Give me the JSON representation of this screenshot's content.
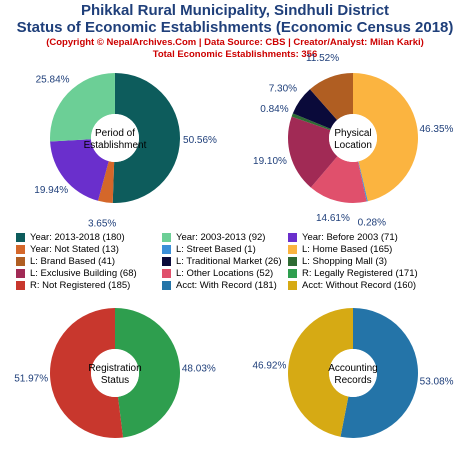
{
  "header": {
    "title_line1": "Phikkal Rural Municipality, Sindhuli District",
    "title_line2": "Status of Economic Establishments (Economic Census 2018)",
    "copyright": "(Copyright © NepalArchives.Com | Data Source: CBS | Creator/Analyst: Milan Karki)",
    "total": "Total Economic Establishments: 356"
  },
  "chart_data": [
    {
      "type": "pie",
      "center_label": [
        "Period of",
        "Establishment"
      ],
      "slices": [
        {
          "name": "Year: 2013-2018",
          "count": 180,
          "percent": 50.56,
          "color": "#0d5c5c",
          "label": "50.56%"
        },
        {
          "name": "Year: Not Stated",
          "count": 13,
          "percent": 3.65,
          "color": "#d4672a",
          "label": "3.65%"
        },
        {
          "name": "Year: Before 2003",
          "count": 71,
          "percent": 19.94,
          "color": "#6a2fcc",
          "label": "19.94%"
        },
        {
          "name": "Year: 2003-2013",
          "count": 92,
          "percent": 25.84,
          "color": "#6ccf96",
          "label": "25.84%"
        }
      ]
    },
    {
      "type": "pie",
      "center_label": [
        "Physical",
        "Location"
      ],
      "slices": [
        {
          "name": "L: Home Based",
          "count": 165,
          "percent": 46.35,
          "color": "#fbb440",
          "label": "46.35%"
        },
        {
          "name": "L: Street Based",
          "count": 1,
          "percent": 0.28,
          "color": "#3a8fd8",
          "label": "0.28%"
        },
        {
          "name": "L: Other Locations",
          "count": 52,
          "percent": 14.61,
          "color": "#e0506c",
          "label": "14.61%"
        },
        {
          "name": "L: Exclusive Building",
          "count": 68,
          "percent": 19.1,
          "color": "#a12a55",
          "label": "19.10%"
        },
        {
          "name": "L: Shopping Mall",
          "count": 3,
          "percent": 0.84,
          "color": "#2e6b33",
          "label": "0.84%"
        },
        {
          "name": "L: Traditional Market",
          "count": 26,
          "percent": 7.3,
          "color": "#0a0a3a",
          "label": "7.30%"
        },
        {
          "name": "L: Brand Based",
          "count": 41,
          "percent": 11.52,
          "color": "#b05e22",
          "label": "11.52%"
        }
      ]
    },
    {
      "type": "pie",
      "center_label": [
        "Registration",
        "Status"
      ],
      "slices": [
        {
          "name": "R: Legally Registered",
          "count": 171,
          "percent": 48.03,
          "color": "#2e9e4e",
          "label": "48.03%"
        },
        {
          "name": "R: Not Registered",
          "count": 185,
          "percent": 51.97,
          "color": "#c8372d",
          "label": "51.97%"
        }
      ]
    },
    {
      "type": "pie",
      "center_label": [
        "Accounting",
        "Records"
      ],
      "slices": [
        {
          "name": "Acct: With Record",
          "count": 181,
          "percent": 53.08,
          "color": "#2474a8",
          "label": "53.08%"
        },
        {
          "name": "Acct: Without Record",
          "count": 160,
          "percent": 46.92,
          "color": "#d6aa14",
          "label": "46.92%"
        }
      ]
    }
  ],
  "legend": [
    {
      "text": "Year: 2013-2018 (180)",
      "color": "#0d5c5c"
    },
    {
      "text": "Year: 2003-2013 (92)",
      "color": "#6ccf96"
    },
    {
      "text": "Year: Before 2003 (71)",
      "color": "#6a2fcc"
    },
    {
      "text": "Year: Not Stated (13)",
      "color": "#d4672a"
    },
    {
      "text": "L: Street Based (1)",
      "color": "#3a8fd8"
    },
    {
      "text": "L: Home Based (165)",
      "color": "#fbb440"
    },
    {
      "text": "L: Brand Based (41)",
      "color": "#b05e22"
    },
    {
      "text": "L: Traditional Market (26)",
      "color": "#0a0a3a"
    },
    {
      "text": "L: Shopping Mall (3)",
      "color": "#2e6b33"
    },
    {
      "text": "L: Exclusive Building (68)",
      "color": "#a12a55"
    },
    {
      "text": "L: Other Locations (52)",
      "color": "#e0506c"
    },
    {
      "text": "R: Legally Registered (171)",
      "color": "#2e9e4e"
    },
    {
      "text": "R: Not Registered (185)",
      "color": "#c8372d"
    },
    {
      "text": "Acct: With Record (181)",
      "color": "#2474a8"
    },
    {
      "text": "Acct: Without Record (160)",
      "color": "#d6aa14"
    }
  ]
}
